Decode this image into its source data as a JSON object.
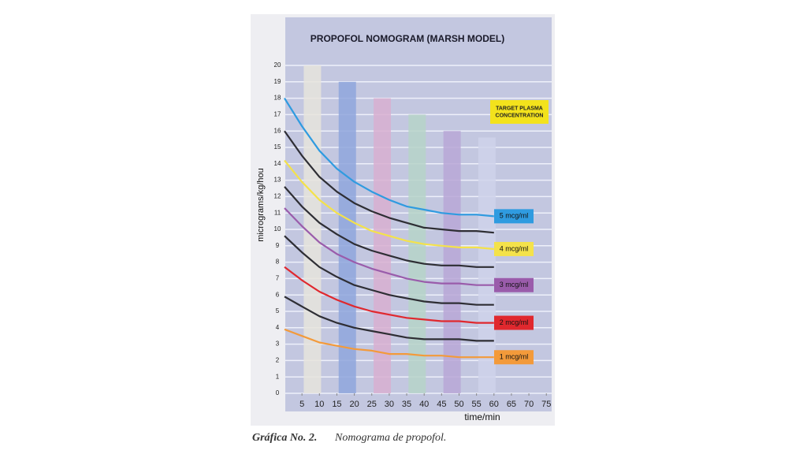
{
  "chart_data": {
    "type": "line",
    "title": "PROPOFOL NOMOGRAM (MARSH MODEL)",
    "x_label": "time/min",
    "y_label": "micrograms/kg/hou",
    "annotation": "TARGET PLASMA CONCENTRATION",
    "xlim": [
      0,
      77
    ],
    "ylim": [
      0,
      20
    ],
    "xticks": [
      5,
      10,
      15,
      20,
      25,
      30,
      35,
      40,
      45,
      50,
      55,
      60,
      65,
      70,
      75
    ],
    "yticks": [
      0,
      1,
      2,
      3,
      4,
      5,
      6,
      7,
      8,
      9,
      10,
      11,
      12,
      13,
      14,
      15,
      16,
      17,
      18,
      19,
      20
    ],
    "grid": true,
    "columns": {
      "x": [
        8,
        18,
        28,
        38,
        48,
        58
      ],
      "values": [
        20,
        19,
        18,
        17,
        16,
        15.6
      ],
      "colors": [
        "#e6e4dc",
        "#8fa6dc",
        "#d8afd0",
        "#b6d3c8",
        "#b8a7d6",
        "#cfd2ea"
      ]
    },
    "x": [
      0,
      5,
      10,
      15,
      20,
      25,
      30,
      35,
      40,
      45,
      50,
      55,
      60
    ],
    "series": [
      {
        "name": "5 mcg/ml",
        "color": "#2f9be0",
        "values": [
          18,
          16.3,
          14.8,
          13.7,
          12.9,
          12.3,
          11.8,
          11.4,
          11.2,
          11.0,
          10.9,
          10.9,
          10.8
        ]
      },
      {
        "color": "#2e2e34",
        "values": [
          16,
          14.5,
          13.2,
          12.3,
          11.6,
          11.1,
          10.7,
          10.4,
          10.1,
          10.0,
          9.9,
          9.9,
          9.8
        ]
      },
      {
        "name": "4 mcg/ml",
        "color": "#f4e24a",
        "values": [
          14.2,
          12.9,
          11.8,
          11.0,
          10.4,
          9.9,
          9.6,
          9.3,
          9.1,
          9.0,
          8.9,
          8.9,
          8.8
        ]
      },
      {
        "color": "#2e2e34",
        "values": [
          12.6,
          11.4,
          10.4,
          9.7,
          9.1,
          8.7,
          8.4,
          8.1,
          7.9,
          7.8,
          7.8,
          7.7,
          7.7
        ]
      },
      {
        "name": "3 mcg/ml",
        "color": "#9a5cab",
        "values": [
          11.3,
          10.2,
          9.2,
          8.5,
          8.0,
          7.6,
          7.3,
          7.0,
          6.8,
          6.7,
          6.7,
          6.6,
          6.6
        ]
      },
      {
        "color": "#2e2e34",
        "values": [
          9.6,
          8.6,
          7.7,
          7.1,
          6.6,
          6.3,
          6.0,
          5.8,
          5.6,
          5.5,
          5.5,
          5.4,
          5.4
        ]
      },
      {
        "name": "2 mcg/ml",
        "color": "#e0282e",
        "values": [
          7.7,
          6.9,
          6.2,
          5.7,
          5.3,
          5.0,
          4.8,
          4.6,
          4.5,
          4.4,
          4.4,
          4.3,
          4.3
        ]
      },
      {
        "color": "#2e2e34",
        "values": [
          5.9,
          5.3,
          4.7,
          4.3,
          4.0,
          3.8,
          3.6,
          3.4,
          3.3,
          3.3,
          3.3,
          3.2,
          3.2
        ]
      },
      {
        "name": "1 mcg/ml",
        "color": "#f39a3a",
        "values": [
          3.9,
          3.5,
          3.1,
          2.9,
          2.7,
          2.6,
          2.4,
          2.4,
          2.3,
          2.3,
          2.2,
          2.2,
          2.2
        ]
      }
    ]
  },
  "caption": {
    "label": "Gráfica No. 2.",
    "text": "Nomograma de propofol."
  }
}
